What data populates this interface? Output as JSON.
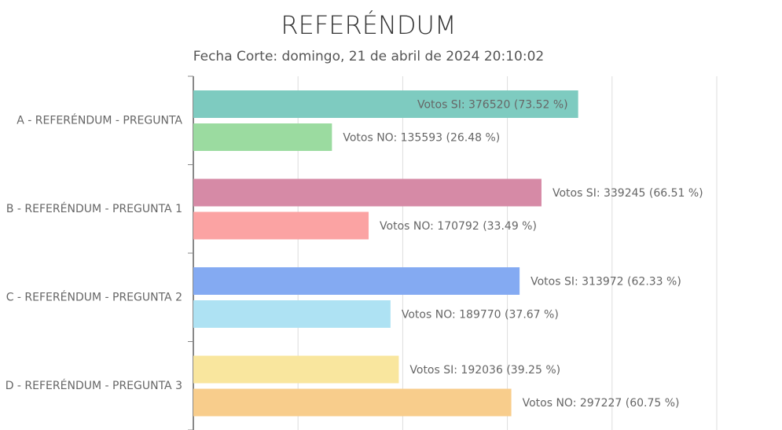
{
  "chart_data": {
    "type": "bar",
    "orientation": "horizontal",
    "title": "REFERÉNDUM",
    "subtitle": "Fecha Corte: domingo, 21 de abril de 2024 20:10:02",
    "categories": [
      "A - REFERÉNDUM - PREGUNTA",
      "B - REFERÉNDUM - PREGUNTA 1",
      "C - REFERÉNDUM - PREGUNTA 2",
      "D - REFERÉNDUM - PREGUNTA 3"
    ],
    "series": [
      {
        "colors": [
          "#7ecbc0",
          "#d68aa6",
          "#84aaf2",
          "#f9e69e"
        ],
        "values": [
          73.52,
          66.51,
          62.33,
          39.25
        ],
        "value_labels": [
          "Votos SI: 376520 (73.52 %)",
          "Votos SI: 339245 (66.51 %)",
          "Votos SI: 313972 (62.33 %)",
          "Votos SI: 192036 (39.25 %)"
        ]
      },
      {
        "colors": [
          "#9bdba0",
          "#fba3a3",
          "#aee2f3",
          "#f8cd8c"
        ],
        "values": [
          26.48,
          33.49,
          37.67,
          60.75
        ],
        "value_labels": [
          "Votos NO: 135593 (26.48 %)",
          "Votos NO: 170792 (33.49 %)",
          "Votos NO: 189770 (37.67 %)",
          "Votos NO: 297227 (60.75 %)"
        ]
      }
    ],
    "xlim": [
      0,
      100
    ],
    "xticks": [
      0,
      20,
      40,
      60,
      80,
      100
    ],
    "show_tick_labels": false,
    "grid": true
  }
}
